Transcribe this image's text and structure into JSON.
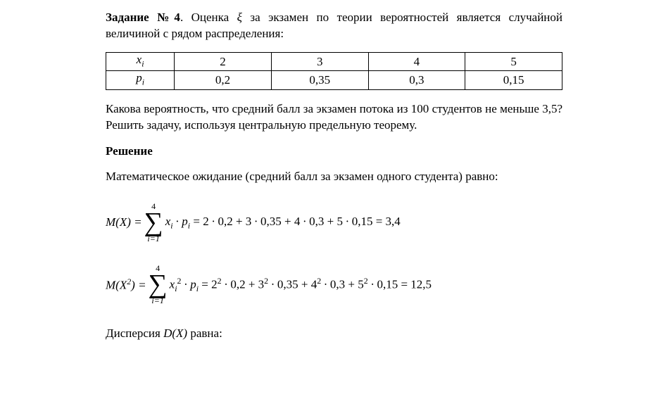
{
  "task": {
    "label": "Задание №4",
    "statement_part1": ". Оценка ",
    "xi": "ξ",
    "statement_part2": " за экзамен по теории вероятностей является случайной величиной с рядом распределения:"
  },
  "table": {
    "row_x_label_var": "x",
    "row_x_label_sub": "i",
    "row_p_label_var": "p",
    "row_p_label_sub": "i",
    "x_values": [
      "2",
      "3",
      "4",
      "5"
    ],
    "p_values": [
      "0,2",
      "0,35",
      "0,3",
      "0,15"
    ],
    "col_widths_pct": [
      15,
      21.25,
      21.25,
      21.25,
      21.25
    ]
  },
  "question": "Какова вероятность, что средний балл за экзамен потока из 100 студентов не меньше 3,5? Решить задачу, используя центральную предельную теорему.",
  "solution_heading": "Решение",
  "solution_intro": "Математическое ожидание (средний балл за экзамен одного студента) равно:",
  "eq1": {
    "lhs": "M(X) = ",
    "sum_top": "4",
    "sum_bot": "i=1",
    "summand_var1": "x",
    "summand_sub1": "i",
    "summand_dot": " ∙ ",
    "summand_var2": "p",
    "summand_sub2": "i",
    "rhs": " = 2 ∙ 0,2 + 3 ∙ 0,35 + 4 ∙ 0,3 + 5 ∙ 0,15 = 3,4"
  },
  "eq2": {
    "lhs_pre": "M(X",
    "lhs_exp": "2",
    "lhs_post": ") = ",
    "sum_top": "4",
    "sum_bot": "i=1",
    "summand_var1": "x",
    "summand_sub1": "i",
    "summand_exp": "2",
    "summand_dot": " ∙ ",
    "summand_var2": "p",
    "summand_sub2": "i",
    "rhs_pre": " = 2",
    "rhs_e1": "2",
    "rhs_m1": " ∙ 0,2 + 3",
    "rhs_e2": "2",
    "rhs_m2": " ∙ 0,35 + 4",
    "rhs_e3": "2",
    "rhs_m3": " ∙ 0,3 + 5",
    "rhs_e4": "2",
    "rhs_m4": " ∙ 0,15 = 12,5"
  },
  "variance_line_pre": "Дисперсия ",
  "variance_D": "D",
  "variance_paren": "(X)",
  "variance_line_post": " равна:",
  "style": {
    "page_bg": "#ffffff",
    "text_color": "#000000",
    "font_family": "Times New Roman",
    "base_fontsize_pt": 13,
    "table_border_color": "#000000"
  }
}
